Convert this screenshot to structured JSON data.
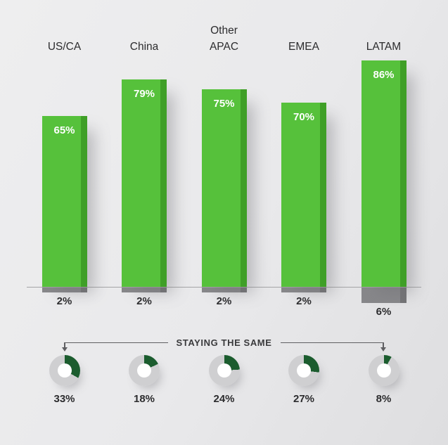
{
  "chart_data": {
    "type": "bar",
    "title": "",
    "xlabel": "",
    "ylabel": "",
    "ylim": [
      0,
      100
    ],
    "grid": false,
    "legend_position": "none",
    "categories": [
      "US/CA",
      "China",
      "Other APAC",
      "EMEA",
      "LATAM"
    ],
    "series": [
      {
        "name": "growing-above-axis",
        "values": [
          65,
          79,
          75,
          70,
          86
        ]
      },
      {
        "name": "below-axis",
        "values": [
          2,
          2,
          2,
          2,
          6
        ]
      },
      {
        "name": "staying-the-same-donuts",
        "values": [
          33,
          18,
          24,
          27,
          8
        ]
      }
    ],
    "bar_value_labels": [
      "65%",
      "79%",
      "75%",
      "70%",
      "86%"
    ],
    "below_axis_labels": [
      "2%",
      "2%",
      "2%",
      "2%",
      "6%"
    ],
    "donut_value_labels": [
      "33%",
      "18%",
      "24%",
      "27%",
      "8%"
    ],
    "connector_label": "STAYING THE SAME"
  },
  "colors": {
    "bar_green": "#56c13b",
    "bar_green_dark": "#3f9f27",
    "stub_gray": "#87878a",
    "donut_green": "#1b5c2e",
    "donut_track": "#cfcfd1",
    "background": "#e9e9eb",
    "text_dark": "#2c2c2e"
  }
}
